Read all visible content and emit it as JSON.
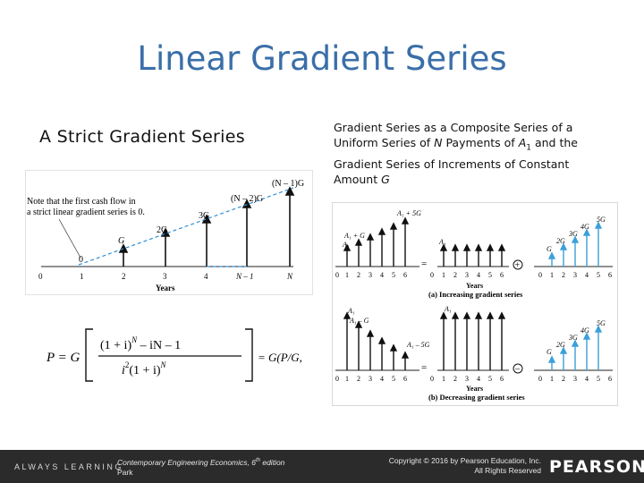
{
  "slide": {
    "title": "Linear Gradient Series",
    "left_heading": "A  Strict  Gradient  Series",
    "right_heading": {
      "part1": "Gradient Series as a Composite Series of a Uniform Series of ",
      "N": "N",
      "part2": " Payments of ",
      "A": "A",
      "sub1": "1",
      "part3": " and the Gradient Series of Increments of Constant Amount ",
      "G": "G"
    }
  },
  "strict_figure": {
    "note_line1": "Note that the first cash flow in",
    "note_line2": "a strict linear gradient series is 0.",
    "labels": {
      "zero": "0",
      "g1": "G",
      "g2": "2G",
      "g3": "3G",
      "gn2": "(N – 2)G",
      "gn1": "(N – 1)G"
    },
    "ticks": [
      "0",
      "1",
      "2",
      "3",
      "4",
      "N – 1",
      "N"
    ],
    "axis_label": "Years"
  },
  "formula": {
    "lhs": "P = G",
    "num": "(1 + i)",
    "num_exp": "N",
    "num_rest": " – iN – 1",
    "den": "i",
    "den_exp": "2",
    "den_rest": "(1 + i)",
    "den_exp2": "N",
    "rhs": "= G(P/G, i, N)"
  },
  "composite_figure": {
    "panel_a": {
      "labels": {
        "a1_5g": "A₁ + 5G",
        "a1_g": "A₁ + G",
        "a1": "A₁",
        "a1b": "A₁",
        "g": "G",
        "g2": "2G",
        "g3": "3G",
        "g4": "4G",
        "g5": "5G"
      },
      "ticks": [
        "0",
        "1",
        "2",
        "3",
        "4",
        "5",
        "6"
      ],
      "axis_label": "Years",
      "eq": "=",
      "op": "+",
      "caption": "(a) Increasing gradient series"
    },
    "panel_b": {
      "labels": {
        "a1": "A₁",
        "a1_g": "A₁ – G",
        "a1_5g": "A₁ – 5G",
        "a1b": "A₁",
        "g": "G",
        "g2": "2G",
        "g3": "3G",
        "g4": "4G",
        "g5": "5G"
      },
      "ticks": [
        "0",
        "1",
        "2",
        "3",
        "4",
        "5",
        "6"
      ],
      "axis_label": "Years",
      "eq": "=",
      "op": "–",
      "caption": "(b) Decreasing gradient series"
    }
  },
  "footer": {
    "always": "ALWAYS LEARNING",
    "book": "Contemporary Engineering Economics, 6",
    "book_sup": "th",
    "book_rest": " edition",
    "author": "Park",
    "copyright": "Copyright © 2016 by Pearson Education, Inc.",
    "rights": "All Rights Reserved",
    "logo": "PEARSON"
  }
}
